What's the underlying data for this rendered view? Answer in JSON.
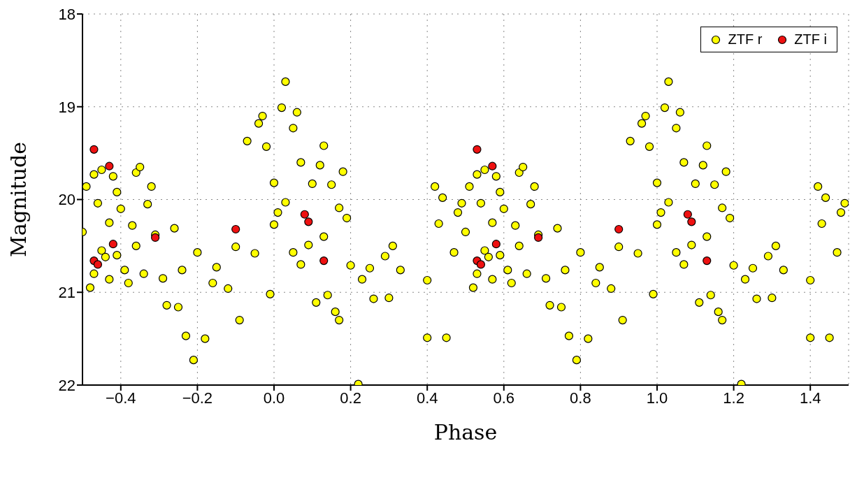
{
  "chart_data": {
    "type": "scatter",
    "xlabel": "Phase",
    "ylabel": "Magnitude",
    "xlim": [
      -0.5,
      1.5
    ],
    "xticks": [
      {
        "value": -0.4,
        "label": "−0.4"
      },
      {
        "value": -0.2,
        "label": "−0.2"
      },
      {
        "value": 0,
        "label": "0.0"
      },
      0.2,
      0.4,
      0.6,
      0.8,
      {
        "value": 1,
        "label": "1.0"
      },
      1.2,
      1.4
    ],
    "ylim": [
      22,
      18
    ],
    "yticks": [
      18,
      19,
      20,
      21,
      22
    ],
    "grid": true,
    "legend": "top right",
    "marker": "circle",
    "series": [
      {
        "name": "ZTF r",
        "color": "#ffff00",
        "x": [
          0.5,
          0.51,
          0.52,
          0.53,
          0.53,
          0.54,
          0.55,
          0.55,
          0.56,
          0.57,
          0.57,
          0.58,
          0.59,
          0.59,
          0.6,
          0.61,
          0.62,
          0.63,
          0.64,
          0.64,
          0.65,
          0.66,
          0.67,
          0.68,
          0.69,
          0.71,
          0.72,
          0.74,
          0.75,
          0.76,
          0.77,
          0.79,
          0.8,
          0.82,
          0.84,
          0.85,
          0.88,
          0.9,
          0.91,
          0.93,
          0.95,
          0.96,
          0.97,
          0.98,
          0.99,
          1.0,
          1.0,
          1.01,
          1.02,
          1.03,
          1.03,
          1.05,
          1.05,
          1.06,
          1.07,
          1.07,
          1.09,
          1.1,
          1.11,
          1.12,
          1.13,
          1.13,
          1.14,
          1.15,
          1.16,
          1.17,
          1.17,
          1.18,
          1.19,
          1.2,
          1.22,
          1.23,
          1.25,
          1.26,
          1.29,
          1.3,
          1.31,
          1.33,
          1.4,
          1.4,
          1.42,
          1.43,
          1.44,
          1.45,
          1.47,
          1.48,
          1.49,
          -0.5,
          -0.49,
          -0.48,
          -0.47,
          -0.47,
          -0.46,
          -0.45,
          -0.45,
          -0.44,
          -0.43,
          -0.43,
          -0.42,
          -0.41,
          -0.41,
          -0.4,
          -0.39,
          -0.38,
          -0.37,
          -0.36,
          -0.36,
          -0.35,
          -0.34,
          -0.33,
          -0.32,
          -0.31,
          -0.29,
          -0.28,
          -0.26,
          -0.25,
          -0.24,
          -0.23,
          -0.21,
          -0.2,
          -0.18,
          -0.16,
          -0.15,
          -0.12,
          -0.1,
          -0.09,
          -0.07,
          -0.05,
          -0.04,
          -0.03,
          -0.02,
          -0.01,
          0.0,
          0.0,
          0.01,
          0.02,
          0.03,
          0.03,
          0.05,
          0.05,
          0.06,
          0.07,
          0.07,
          0.09,
          0.1,
          0.11,
          0.12,
          0.13,
          0.13,
          0.14,
          0.15,
          0.16,
          0.17,
          0.17,
          0.18,
          0.19,
          0.2,
          0.22,
          0.23,
          0.25,
          0.26,
          0.29,
          0.3,
          0.31,
          0.33,
          0.4,
          0.4,
          0.42,
          0.43,
          0.44,
          0.45,
          0.47,
          0.48,
          0.49
        ],
        "values": [
          20.35,
          19.86,
          20.95,
          19.73,
          20.8,
          20.04,
          19.68,
          20.55,
          20.62,
          20.25,
          20.86,
          19.75,
          19.92,
          20.6,
          20.1,
          20.76,
          20.9,
          20.28,
          19.71,
          20.5,
          19.65,
          20.8,
          20.05,
          19.86,
          20.38,
          20.85,
          21.14,
          20.31,
          21.16,
          20.76,
          21.47,
          21.73,
          20.57,
          21.5,
          20.9,
          20.73,
          20.96,
          20.51,
          21.3,
          19.37,
          20.58,
          19.18,
          19.1,
          19.43,
          21.02,
          19.82,
          20.27,
          20.14,
          19.01,
          18.73,
          20.03,
          19.23,
          20.57,
          19.06,
          20.7,
          19.6,
          20.49,
          19.83,
          21.11,
          19.63,
          19.42,
          20.4,
          21.03,
          19.84,
          21.21,
          20.09,
          21.3,
          19.7,
          20.2,
          20.71,
          21.99,
          20.86,
          20.74,
          21.07,
          20.61,
          21.06,
          20.5,
          20.76,
          20.87,
          21.49,
          19.86,
          20.26,
          19.98,
          21.49,
          20.57,
          20.14,
          20.04,
          20.35,
          19.86,
          20.95,
          19.73,
          20.8,
          20.04,
          19.68,
          20.55,
          20.62,
          20.25,
          20.86,
          19.75,
          19.92,
          20.6,
          20.1,
          20.76,
          20.9,
          20.28,
          19.71,
          20.5,
          19.65,
          20.8,
          20.05,
          19.86,
          20.38,
          20.85,
          21.14,
          20.31,
          21.16,
          20.76,
          21.47,
          21.73,
          20.57,
          21.5,
          20.9,
          20.73,
          20.96,
          20.51,
          21.3,
          19.37,
          20.58,
          19.18,
          19.1,
          19.43,
          21.02,
          19.82,
          20.27,
          20.14,
          19.01,
          18.73,
          20.03,
          19.23,
          20.57,
          19.06,
          20.7,
          19.6,
          20.49,
          19.83,
          21.11,
          19.63,
          19.42,
          20.4,
          21.03,
          19.84,
          21.21,
          20.09,
          21.3,
          19.7,
          20.2,
          20.71,
          21.99,
          20.86,
          20.74,
          21.07,
          20.61,
          21.06,
          20.5,
          20.76,
          20.87,
          21.49,
          19.86,
          20.26,
          19.98,
          21.49,
          20.57,
          20.14,
          20.04
        ]
      },
      {
        "name": "ZTF i",
        "color": "#ee1111",
        "x": [
          0.53,
          0.53,
          0.54,
          0.57,
          0.58,
          0.69,
          0.9,
          1.08,
          1.09,
          1.13,
          -0.47,
          -0.47,
          -0.46,
          -0.43,
          -0.42,
          -0.31,
          -0.1,
          0.08,
          0.09,
          0.13
        ],
        "values": [
          19.46,
          20.66,
          20.7,
          19.64,
          20.48,
          20.41,
          20.32,
          20.16,
          20.24,
          20.66,
          19.46,
          20.66,
          20.7,
          19.64,
          20.48,
          20.41,
          20.32,
          20.16,
          20.24,
          20.66
        ]
      }
    ]
  }
}
